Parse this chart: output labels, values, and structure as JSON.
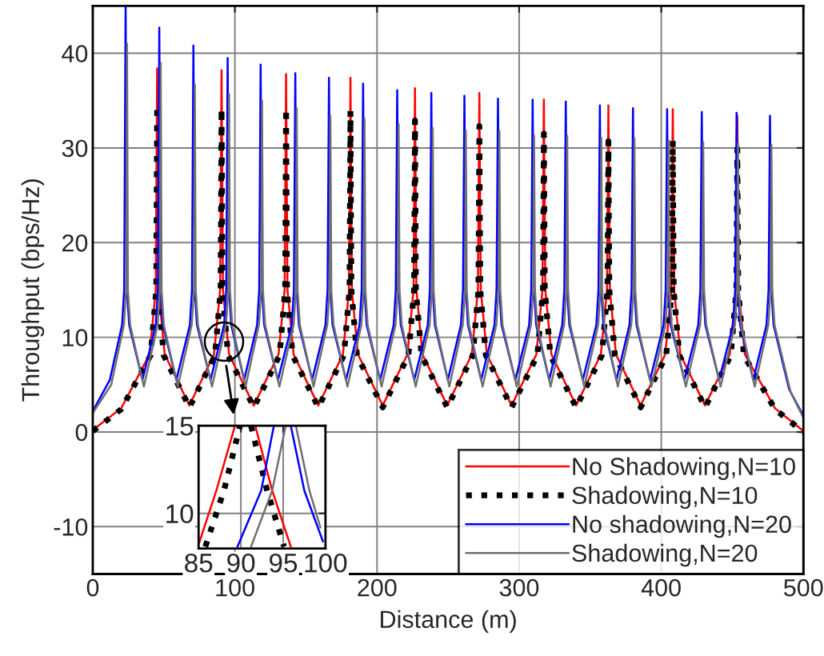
{
  "chart_data": [
    {
      "type": "line",
      "xlabel": "Distance (m)",
      "ylabel": "Throughput (bps/Hz)",
      "xlim": [
        0,
        500
      ],
      "xticks": [
        0,
        100,
        200,
        300,
        400,
        500
      ],
      "ylim": [
        -15,
        45
      ],
      "yticks": [
        -10,
        0,
        10,
        20,
        30,
        40
      ],
      "grid": true,
      "legend": "bottom right",
      "series": [
        {
          "name": "No Shadowing,N=10",
          "color": "#ff0000",
          "line_style": "solid",
          "x": [
            0,
            20,
            40.0,
            44.3,
            45.3,
            46.3,
            50.6,
            68.0,
            85.3,
            89.6,
            90.6,
            91.6,
            95.9,
            113.3,
            130.7,
            135.0,
            136.0,
            137.0,
            141.3,
            158.7,
            176.0,
            180.3,
            181.3,
            182.3,
            186.6,
            204.0,
            221.4,
            225.7,
            226.7,
            227.7,
            232.0,
            249.4,
            266.7,
            271.0,
            272.0,
            273.0,
            277.3,
            294.7,
            312.1,
            316.4,
            317.4,
            318.4,
            322.7,
            340.1,
            357.5,
            361.8,
            362.8,
            363.8,
            368.1,
            385.5,
            402.8,
            407.1,
            408.1,
            409.1,
            413.4,
            430.8,
            448.2,
            452.5,
            453.5,
            454.5,
            458.8,
            480,
            500
          ],
          "values": [
            0.2,
            2.5,
            8.2,
            15,
            38.4,
            15,
            8.2,
            2.8,
            8.2,
            15,
            38.2,
            15,
            8.2,
            2.8,
            8.2,
            15,
            37.8,
            15,
            8.2,
            2.8,
            8.2,
            15,
            37.4,
            15,
            8.2,
            2.8,
            8.2,
            15,
            36.3,
            15,
            8.2,
            2.8,
            8.2,
            15,
            35.8,
            15,
            8.2,
            2.8,
            8.2,
            15,
            35.1,
            15,
            8.2,
            2.8,
            8.2,
            15,
            34.5,
            15,
            8.2,
            2.8,
            8.2,
            15,
            34.1,
            15,
            8.2,
            2.8,
            8.2,
            15,
            33.4,
            15,
            8.2,
            2.5,
            0.1
          ]
        },
        {
          "name": "Shadowing,N=10",
          "color": "#000000",
          "line_style": "dotted",
          "x": [
            0,
            20,
            40.7,
            44.65,
            45.3,
            45.95,
            49.9,
            68.0,
            86.0,
            89.95,
            90.6,
            91.25,
            95.2,
            113.3,
            131.4,
            135.35,
            136.0,
            136.65,
            140.6,
            158.7,
            176.7,
            180.65,
            181.3,
            181.95,
            185.9,
            204.0,
            222.1,
            226.05,
            226.7,
            227.35,
            231.3,
            249.4,
            267.4,
            271.35,
            272.0,
            272.65,
            276.6,
            294.7,
            312.8,
            316.75,
            317.4,
            318.05,
            322.0,
            340.1,
            358.2,
            362.15,
            362.8,
            363.45,
            367.4,
            385.5,
            403.5,
            407.45,
            408.1,
            408.75,
            412.7,
            430.8,
            448.9,
            452.85,
            453.5,
            454.15,
            458.1,
            480,
            500
          ],
          "values": [
            0.1,
            2.4,
            8.1,
            15,
            34.5,
            15,
            8.1,
            2.6,
            8.1,
            15,
            34.2,
            15,
            8.1,
            2.6,
            8.1,
            15,
            34.2,
            15,
            8.1,
            2.6,
            8.1,
            15,
            33.9,
            15,
            8.1,
            2.6,
            8.1,
            15,
            32.9,
            15,
            8.1,
            2.6,
            8.1,
            15,
            32.3,
            15,
            8.1,
            2.6,
            8.1,
            15,
            31.5,
            15,
            8.1,
            2.6,
            8.1,
            15,
            30.7,
            15,
            8.1,
            2.6,
            8.1,
            15,
            30.8,
            15,
            8.1,
            2.6,
            8.1,
            15,
            29.9,
            15,
            8.1,
            2.4,
            0.0
          ]
        },
        {
          "name": "No shadowing,N=20",
          "color": "#0000ff",
          "line_style": "solid",
          "x": [
            0,
            12,
            20.6,
            22.1,
            23.1,
            24.1,
            25.6,
            34.95,
            44.3,
            45.8,
            46.8,
            47.8,
            49.3,
            58.8,
            68.3,
            69.8,
            70.8,
            71.8,
            73.3,
            82.85,
            92.4,
            93.9,
            94.9,
            95.9,
            97.4,
            106.5,
            115.6,
            117.1,
            118.1,
            119.1,
            120.6,
            130.3,
            140.0,
            141.5,
            142.5,
            143.5,
            145.0,
            154.35,
            163.7,
            165.2,
            166.2,
            167.2,
            168.7,
            178.2,
            187.7,
            189.2,
            190.2,
            191.2,
            192.7,
            202.2,
            211.7,
            213.2,
            214.2,
            215.2,
            216.7,
            226.2,
            235.7,
            237.2,
            238.2,
            239.2,
            240.7,
            249.85,
            259.0,
            260.5,
            261.5,
            262.5,
            264.0,
            273.3,
            282.6,
            284.1,
            285.1,
            286.1,
            287.6,
            297.3,
            307.0,
            308.5,
            309.5,
            310.5,
            312.0,
            321.15,
            330.3,
            331.8,
            332.8,
            333.8,
            335.3,
            344.8,
            354.3,
            355.8,
            356.8,
            357.8,
            359.3,
            368.45,
            377.6,
            379.1,
            380.1,
            381.1,
            382.6,
            392.1,
            401.6,
            403.1,
            404.1,
            405.1,
            406.6,
            416.3,
            426.0,
            427.5,
            428.5,
            429.5,
            431.0,
            440.75,
            450.5,
            452.0,
            453.0,
            454.0,
            455.5,
            464.75,
            474.0,
            475.5,
            476.5,
            477.5,
            479.0,
            490,
            500
          ],
          "values": [
            2.2,
            5.5,
            11.3,
            15,
            45,
            15,
            11.3,
            5.5,
            11.3,
            15,
            42.7,
            15,
            11.3,
            5.5,
            11.3,
            15,
            40.8,
            15,
            11.3,
            5.5,
            11.3,
            15,
            39.5,
            15,
            11.3,
            5.5,
            11.3,
            15,
            38.8,
            15,
            11.3,
            5.5,
            11.3,
            15,
            37.9,
            15,
            11.3,
            5.5,
            11.3,
            15,
            37.4,
            15,
            11.3,
            5.5,
            11.3,
            15,
            36.8,
            15,
            11.3,
            5.5,
            11.3,
            15,
            36.1,
            15,
            11.3,
            5.5,
            11.3,
            15,
            35.8,
            15,
            11.3,
            5.5,
            11.3,
            15,
            35.5,
            15,
            11.3,
            5.5,
            11.3,
            15,
            35.2,
            15,
            11.3,
            5.5,
            11.3,
            15,
            35.1,
            15,
            11.3,
            5.5,
            11.3,
            15,
            34.9,
            15,
            11.3,
            5.5,
            11.3,
            15,
            34.5,
            15,
            11.3,
            5.5,
            11.3,
            15,
            34.2,
            15,
            11.3,
            5.5,
            11.3,
            15,
            34.1,
            15,
            11.3,
            5.5,
            11.3,
            15,
            33.8,
            15,
            11.3,
            5.5,
            11.3,
            15,
            33.7,
            15,
            11.3,
            5.5,
            11.3,
            15,
            33.4,
            15,
            11.3,
            4.5,
            1.7
          ]
        },
        {
          "name": "Shadowing,N=20",
          "color": "#707070",
          "line_style": "solid",
          "x": [
            0,
            13,
            21.9,
            23.5,
            24.1,
            24.7,
            26.3,
            35.95,
            45.6,
            47.2,
            47.8,
            48.4,
            50.0,
            59.8,
            69.6,
            71.2,
            71.8,
            72.4,
            74.0,
            83.85,
            93.7,
            95.3,
            95.9,
            96.5,
            98.1,
            107.5,
            116.9,
            118.5,
            119.1,
            119.7,
            121.3,
            131.3,
            141.3,
            142.9,
            143.5,
            144.1,
            145.7,
            155.35,
            165.0,
            166.6,
            167.2,
            167.8,
            169.4,
            179.2,
            189.0,
            190.6,
            191.2,
            191.8,
            193.4,
            203.2,
            213.0,
            214.6,
            215.2,
            215.8,
            217.4,
            227.2,
            237.0,
            238.6,
            239.2,
            239.8,
            241.4,
            250.85,
            260.3,
            261.9,
            262.5,
            263.1,
            264.7,
            274.3,
            283.9,
            285.5,
            286.1,
            286.7,
            288.3,
            298.3,
            308.3,
            309.9,
            310.5,
            311.1,
            312.7,
            322.15,
            331.6,
            333.2,
            333.8,
            334.4,
            336.0,
            345.8,
            355.6,
            357.2,
            357.8,
            358.4,
            360.0,
            369.45,
            378.9,
            380.5,
            381.1,
            381.7,
            383.3,
            393.1,
            402.9,
            404.5,
            405.1,
            405.7,
            407.3,
            417.3,
            427.3,
            428.9,
            429.5,
            430.1,
            431.7,
            441.75,
            451.8,
            453.4,
            454.0,
            454.6,
            456.2,
            465.75,
            475.3,
            476.9,
            477.5,
            478.1,
            479.7,
            491,
            500
          ],
          "values": [
            2.0,
            5.0,
            11.3,
            15,
            41.0,
            15,
            11.3,
            4.8,
            11.3,
            15,
            39.0,
            15,
            11.3,
            4.8,
            11.3,
            15,
            36.7,
            15,
            11.3,
            4.8,
            11.3,
            15,
            35.7,
            15,
            11.3,
            4.8,
            11.3,
            15,
            35.0,
            15,
            11.3,
            4.8,
            11.3,
            15,
            34.2,
            15,
            11.3,
            4.8,
            11.3,
            15,
            33.4,
            15,
            11.3,
            4.8,
            11.3,
            15,
            33.1,
            15,
            11.3,
            4.8,
            11.3,
            15,
            32.5,
            15,
            11.3,
            4.8,
            11.3,
            15,
            32.1,
            15,
            11.3,
            4.8,
            11.3,
            15,
            31.8,
            15,
            11.3,
            4.8,
            11.3,
            15,
            31.8,
            15,
            11.3,
            4.8,
            11.3,
            15,
            31.3,
            15,
            11.3,
            4.8,
            11.3,
            15,
            31.3,
            15,
            11.3,
            4.8,
            11.3,
            15,
            31.1,
            15,
            11.3,
            4.8,
            11.3,
            15,
            31.0,
            15,
            11.3,
            4.8,
            11.3,
            15,
            30.8,
            15,
            11.3,
            4.8,
            11.3,
            15,
            30.6,
            15,
            11.3,
            4.8,
            11.3,
            15,
            30.5,
            15,
            11.3,
            4.8,
            11.3,
            15,
            30.3,
            15,
            11.3,
            4.2,
            1.5
          ]
        }
      ]
    },
    {
      "type": "line",
      "xlim": [
        85,
        100
      ],
      "xticks": [
        85,
        90,
        95,
        100
      ],
      "ylim": [
        8,
        15
      ],
      "yticks": [
        10,
        15
      ],
      "grid": true,
      "series": [
        {
          "color": "#ff0000",
          "line_style": "solid",
          "x": [
            85.06,
            87.1,
            89.3,
            90.5,
            91.7,
            93.7,
            95.9
          ],
          "values": [
            8.3,
            11.3,
            15,
            null,
            15,
            11.3,
            8.1
          ]
        },
        {
          "color": "#000000",
          "line_style": "dotted",
          "x": [
            85.8,
            88.0,
            89.9,
            90.55,
            91.2,
            93.1,
            95.1
          ],
          "values": [
            8.1,
            11.3,
            15,
            null,
            15,
            11.3,
            8.1
          ]
        },
        {
          "color": "#0000ff",
          "line_style": "solid",
          "x": [
            89.6,
            92.4,
            93.9,
            94.9,
            95.9,
            97.5,
            99.7
          ],
          "values": [
            8.1,
            11.3,
            15,
            null,
            15,
            11.3,
            8.4
          ]
        },
        {
          "color": "#707070",
          "line_style": "solid",
          "x": [
            91.2,
            93.7,
            95.3,
            95.9,
            96.5,
            98.1,
            99.4
          ],
          "values": [
            8.1,
            11.3,
            15,
            null,
            15,
            11.3,
            9.2
          ]
        }
      ]
    }
  ]
}
